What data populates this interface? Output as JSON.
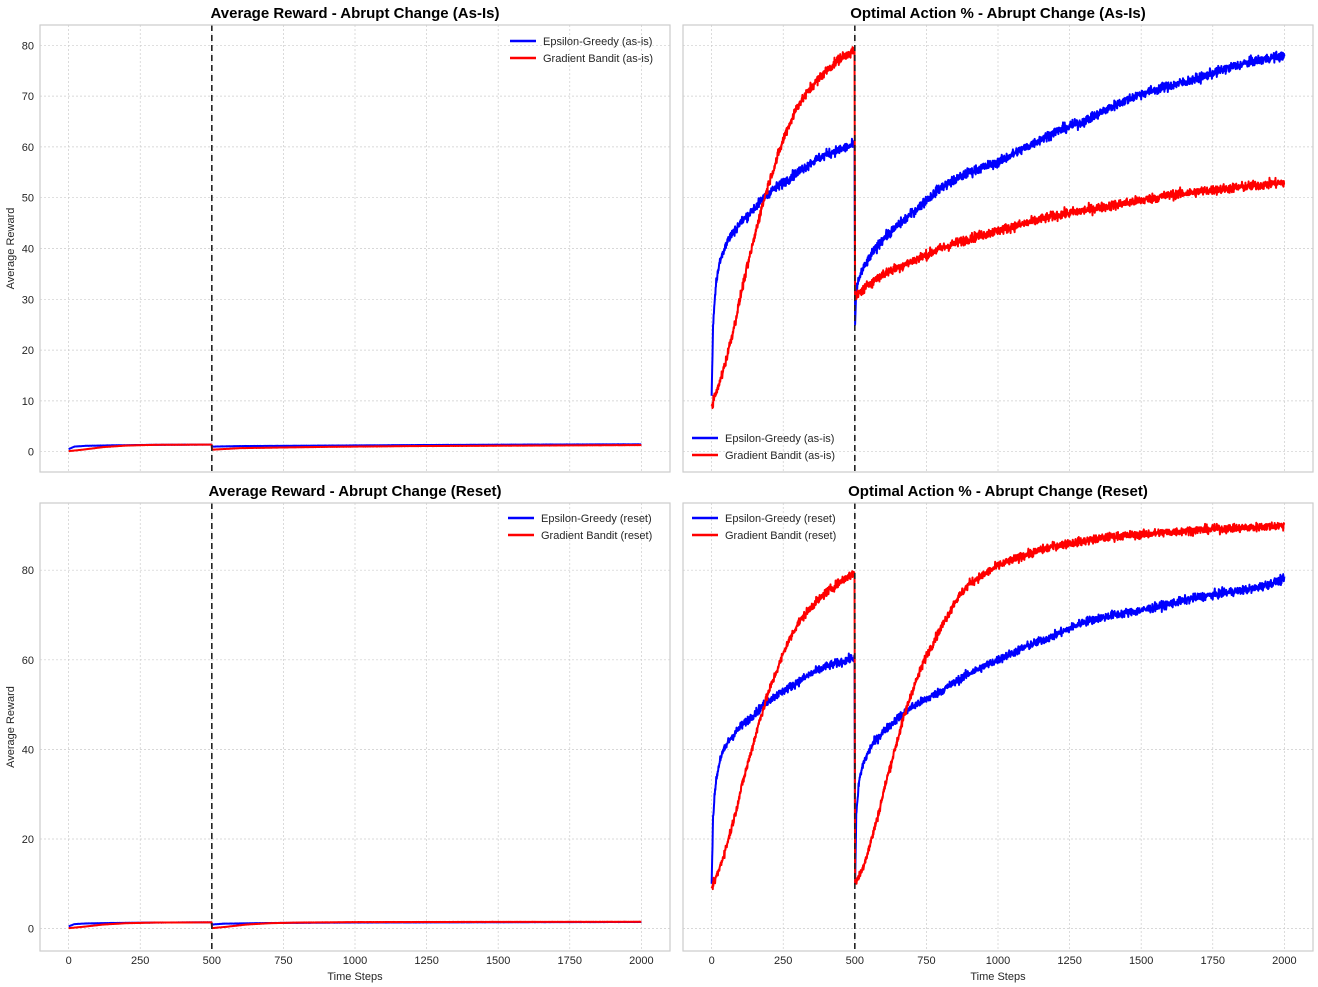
{
  "colors": {
    "epsilon_greedy": "#0000ff",
    "gradient_bandit": "#ff0000",
    "change_line": "#222222",
    "grid": "#cccccc",
    "frame": "#cccccc"
  },
  "chart_data": [
    {
      "type": "line",
      "title": "Average Reward - Abrupt Change (As-Is)",
      "xlabel": "",
      "ylabel": "Average Reward",
      "xlim": [
        -100,
        2100
      ],
      "ylim": [
        -4,
        84
      ],
      "x_ticks": [
        0,
        250,
        500,
        750,
        1000,
        1250,
        1500,
        1750,
        2000
      ],
      "x_tick_labels_visible": false,
      "y_ticks": [
        0,
        10,
        20,
        30,
        40,
        50,
        60,
        70,
        80
      ],
      "y_tick_labels_visible": true,
      "grid": true,
      "legend_position": "upper right",
      "change_point": 500,
      "series": [
        {
          "name": "Epsilon-Greedy (as-is)",
          "color": "#0000ff",
          "points": [
            [
              0,
              0.5
            ],
            [
              20,
              1.0
            ],
            [
              60,
              1.15
            ],
            [
              150,
              1.25
            ],
            [
              300,
              1.35
            ],
            [
              499,
              1.4
            ],
            [
              501,
              1.0
            ],
            [
              600,
              1.1
            ],
            [
              900,
              1.2
            ],
            [
              1200,
              1.3
            ],
            [
              1600,
              1.4
            ],
            [
              2000,
              1.45
            ]
          ]
        },
        {
          "name": "Gradient Bandit (as-is)",
          "color": "#ff0000",
          "points": [
            [
              0,
              0.1
            ],
            [
              50,
              0.4
            ],
            [
              120,
              0.9
            ],
            [
              200,
              1.2
            ],
            [
              300,
              1.35
            ],
            [
              499,
              1.4
            ],
            [
              501,
              0.4
            ],
            [
              600,
              0.7
            ],
            [
              900,
              0.95
            ],
            [
              1200,
              1.1
            ],
            [
              1600,
              1.2
            ],
            [
              2000,
              1.3
            ]
          ]
        }
      ]
    },
    {
      "type": "line",
      "title": "Optimal Action % - Abrupt Change (As-Is)",
      "xlabel": "",
      "ylabel": "",
      "xlim": [
        -100,
        2100
      ],
      "ylim": [
        -4,
        84
      ],
      "x_ticks": [
        0,
        250,
        500,
        750,
        1000,
        1250,
        1500,
        1750,
        2000
      ],
      "x_tick_labels_visible": false,
      "y_ticks": [
        0,
        10,
        20,
        30,
        40,
        50,
        60,
        70,
        80
      ],
      "y_tick_labels_visible": false,
      "grid": true,
      "legend_position": "lower left",
      "change_point": 500,
      "series": [
        {
          "name": "Epsilon-Greedy (as-is)",
          "color": "#0000ff",
          "points": [
            [
              0,
              11
            ],
            [
              5,
              25
            ],
            [
              15,
              33
            ],
            [
              30,
              38
            ],
            [
              60,
              42
            ],
            [
              100,
              45
            ],
            [
              150,
              48
            ],
            [
              200,
              51
            ],
            [
              250,
              53
            ],
            [
              300,
              55
            ],
            [
              350,
              57
            ],
            [
              400,
              58.5
            ],
            [
              450,
              59.5
            ],
            [
              499,
              60.5
            ],
            [
              501,
              25
            ],
            [
              505,
              32
            ],
            [
              520,
              35
            ],
            [
              560,
              39
            ],
            [
              600,
              42
            ],
            [
              700,
              47
            ],
            [
              800,
              52
            ],
            [
              900,
              55
            ],
            [
              1000,
              57
            ],
            [
              1100,
              60
            ],
            [
              1200,
              63
            ],
            [
              1300,
              65
            ],
            [
              1400,
              68
            ],
            [
              1500,
              70.5
            ],
            [
              1600,
              72
            ],
            [
              1700,
              73.5
            ],
            [
              1800,
              75.5
            ],
            [
              1900,
              77
            ],
            [
              2000,
              78
            ]
          ]
        },
        {
          "name": "Gradient Bandit (as-is)",
          "color": "#ff0000",
          "points": [
            [
              0,
              9
            ],
            [
              25,
              13
            ],
            [
              50,
              18
            ],
            [
              80,
              25
            ],
            [
              110,
              33
            ],
            [
              140,
              40
            ],
            [
              170,
              47
            ],
            [
              200,
              53
            ],
            [
              230,
              58
            ],
            [
              260,
              63
            ],
            [
              300,
              68
            ],
            [
              350,
              72
            ],
            [
              400,
              75
            ],
            [
              450,
              77.5
            ],
            [
              499,
              79
            ],
            [
              501,
              30
            ],
            [
              510,
              31
            ],
            [
              550,
              33
            ],
            [
              600,
              35
            ],
            [
              700,
              37.5
            ],
            [
              800,
              40
            ],
            [
              900,
              42
            ],
            [
              1000,
              43.5
            ],
            [
              1100,
              45
            ],
            [
              1200,
              46.5
            ],
            [
              1300,
              47.5
            ],
            [
              1400,
              48.5
            ],
            [
              1500,
              49.5
            ],
            [
              1600,
              50.5
            ],
            [
              1700,
              51.2
            ],
            [
              1800,
              51.8
            ],
            [
              1900,
              52.4
            ],
            [
              2000,
              53
            ]
          ]
        }
      ]
    },
    {
      "type": "line",
      "title": "Average Reward - Abrupt Change (Reset)",
      "xlabel": "Time Steps",
      "ylabel": "Average Reward",
      "xlim": [
        -100,
        2100
      ],
      "ylim": [
        -5,
        95
      ],
      "x_ticks": [
        0,
        250,
        500,
        750,
        1000,
        1250,
        1500,
        1750,
        2000
      ],
      "x_tick_labels_visible": true,
      "y_ticks": [
        0,
        20,
        40,
        60,
        80
      ],
      "y_tick_labels_visible": true,
      "grid": true,
      "legend_position": "upper right",
      "change_point": 500,
      "series": [
        {
          "name": "Epsilon-Greedy (reset)",
          "color": "#0000ff",
          "points": [
            [
              0,
              0.5
            ],
            [
              20,
              1.0
            ],
            [
              60,
              1.15
            ],
            [
              150,
              1.25
            ],
            [
              300,
              1.35
            ],
            [
              499,
              1.4
            ],
            [
              501,
              0.9
            ],
            [
              540,
              1.1
            ],
            [
              700,
              1.25
            ],
            [
              1000,
              1.35
            ],
            [
              1500,
              1.42
            ],
            [
              2000,
              1.48
            ]
          ]
        },
        {
          "name": "Gradient Bandit (reset)",
          "color": "#ff0000",
          "points": [
            [
              0,
              0.1
            ],
            [
              50,
              0.4
            ],
            [
              120,
              0.9
            ],
            [
              200,
              1.2
            ],
            [
              300,
              1.35
            ],
            [
              499,
              1.4
            ],
            [
              501,
              0.1
            ],
            [
              550,
              0.4
            ],
            [
              620,
              0.9
            ],
            [
              700,
              1.2
            ],
            [
              800,
              1.35
            ],
            [
              1000,
              1.45
            ],
            [
              1500,
              1.5
            ],
            [
              2000,
              1.52
            ]
          ]
        }
      ]
    },
    {
      "type": "line",
      "title": "Optimal Action % - Abrupt Change (Reset)",
      "xlabel": "Time Steps",
      "ylabel": "",
      "xlim": [
        -100,
        2100
      ],
      "ylim": [
        -5,
        95
      ],
      "x_ticks": [
        0,
        250,
        500,
        750,
        1000,
        1250,
        1500,
        1750,
        2000
      ],
      "x_tick_labels_visible": true,
      "y_ticks": [
        0,
        20,
        40,
        60,
        80
      ],
      "y_tick_labels_visible": false,
      "grid": true,
      "legend_position": "upper left",
      "change_point": 500,
      "series": [
        {
          "name": "Epsilon-Greedy (reset)",
          "color": "#0000ff",
          "points": [
            [
              0,
              10
            ],
            [
              5,
              25
            ],
            [
              15,
              33
            ],
            [
              30,
              38
            ],
            [
              60,
              42
            ],
            [
              100,
              45
            ],
            [
              150,
              48
            ],
            [
              200,
              51
            ],
            [
              250,
              53
            ],
            [
              300,
              55
            ],
            [
              350,
              57
            ],
            [
              400,
              58.5
            ],
            [
              450,
              59.5
            ],
            [
              499,
              60.5
            ],
            [
              501,
              10
            ],
            [
              505,
              25
            ],
            [
              515,
              33
            ],
            [
              530,
              37
            ],
            [
              560,
              41
            ],
            [
              600,
              44
            ],
            [
              650,
              47
            ],
            [
              700,
              49.5
            ],
            [
              800,
              53
            ],
            [
              900,
              57
            ],
            [
              1000,
              60
            ],
            [
              1100,
              63
            ],
            [
              1200,
              65.5
            ],
            [
              1300,
              68.5
            ],
            [
              1400,
              70
            ],
            [
              1500,
              71
            ],
            [
              1600,
              72.5
            ],
            [
              1700,
              74
            ],
            [
              1800,
              75
            ],
            [
              1900,
              76
            ],
            [
              2000,
              78
            ]
          ]
        },
        {
          "name": "Gradient Bandit (reset)",
          "color": "#ff0000",
          "points": [
            [
              0,
              9
            ],
            [
              25,
              13
            ],
            [
              50,
              18
            ],
            [
              80,
              25
            ],
            [
              110,
              33
            ],
            [
              140,
              40
            ],
            [
              170,
              47
            ],
            [
              200,
              53
            ],
            [
              230,
              58
            ],
            [
              260,
              63
            ],
            [
              300,
              68
            ],
            [
              350,
              72
            ],
            [
              400,
              75
            ],
            [
              450,
              77.5
            ],
            [
              499,
              79.5
            ],
            [
              501,
              10
            ],
            [
              525,
              13
            ],
            [
              550,
              18
            ],
            [
              580,
              25
            ],
            [
              610,
              33
            ],
            [
              640,
              40
            ],
            [
              670,
              47
            ],
            [
              700,
              53
            ],
            [
              750,
              61
            ],
            [
              800,
              67
            ],
            [
              850,
              73
            ],
            [
              900,
              77
            ],
            [
              1000,
              81
            ],
            [
              1100,
              83.5
            ],
            [
              1200,
              85.5
            ],
            [
              1300,
              86.5
            ],
            [
              1400,
              87.5
            ],
            [
              1500,
              88
            ],
            [
              1600,
              88.5
            ],
            [
              1700,
              89
            ],
            [
              1800,
              89.3
            ],
            [
              1900,
              89.6
            ],
            [
              2000,
              90
            ]
          ]
        }
      ]
    }
  ]
}
